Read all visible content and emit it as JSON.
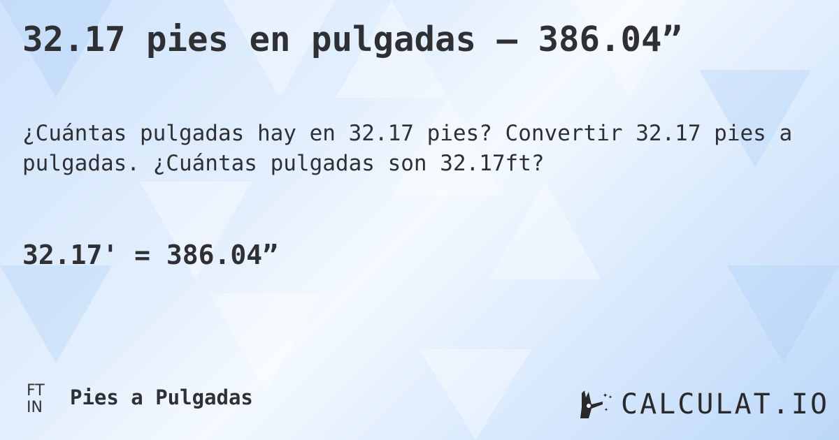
{
  "header": {
    "title": "32.17 pies en pulgadas — 386.04”"
  },
  "description": "¿Cuántas pulgadas hay en 32.17 pies? Convertir 32.17 pies a pulgadas. ¿Cuántas pulgadas son 32.17ft?",
  "result": "32.17' = 386.04”",
  "footer": {
    "unit_from": "FT",
    "unit_to": "IN",
    "category": "Pies a Pulgadas",
    "logo": "CALCULAT.IO"
  },
  "colors": {
    "text": "#2f3033",
    "background": "#dcebfd"
  }
}
